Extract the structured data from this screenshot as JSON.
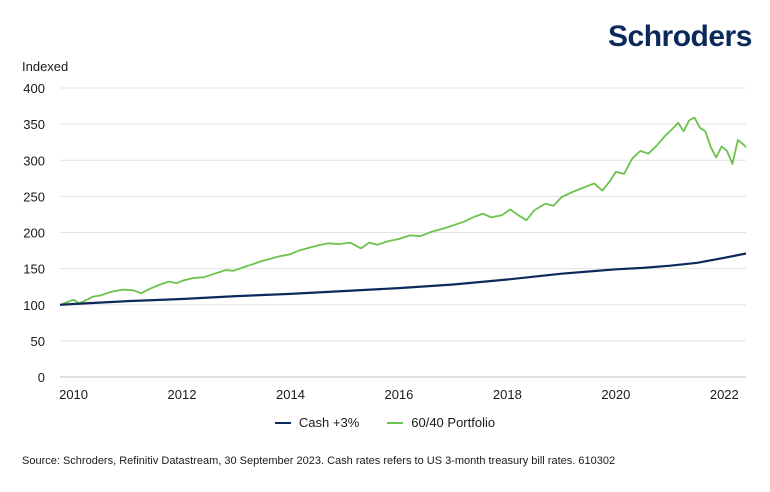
{
  "brand": {
    "name": "Schroders"
  },
  "chart_data": {
    "type": "line",
    "ylabel": "Indexed",
    "xlabel": "",
    "ylim": [
      0,
      400
    ],
    "xlim": [
      2009.75,
      2022.4
    ],
    "yticks": [
      0,
      50,
      100,
      150,
      200,
      250,
      300,
      350,
      400
    ],
    "xticks": [
      2010,
      2012,
      2014,
      2016,
      2018,
      2020,
      2022
    ],
    "grid": true,
    "legend_position": "bottom",
    "series": [
      {
        "name": "Cash +3%",
        "color": "#0b2a5b",
        "points": [
          [
            2009.75,
            100
          ],
          [
            2010.0,
            101
          ],
          [
            2011.0,
            105
          ],
          [
            2012.0,
            108
          ],
          [
            2013.0,
            112
          ],
          [
            2014.0,
            115
          ],
          [
            2015.0,
            119
          ],
          [
            2016.0,
            123
          ],
          [
            2017.0,
            128
          ],
          [
            2018.0,
            135
          ],
          [
            2019.0,
            143
          ],
          [
            2019.5,
            146
          ],
          [
            2020.0,
            149
          ],
          [
            2020.5,
            151
          ],
          [
            2021.0,
            154
          ],
          [
            2021.5,
            158
          ],
          [
            2022.0,
            165
          ],
          [
            2022.4,
            171
          ]
        ]
      },
      {
        "name": "60/40 Portfolio",
        "color": "#6cc24a",
        "points": [
          [
            2009.75,
            100
          ],
          [
            2009.9,
            104
          ],
          [
            2010.0,
            107
          ],
          [
            2010.1,
            102
          ],
          [
            2010.2,
            105
          ],
          [
            2010.35,
            111
          ],
          [
            2010.5,
            113
          ],
          [
            2010.7,
            118
          ],
          [
            2010.9,
            121
          ],
          [
            2011.1,
            120
          ],
          [
            2011.25,
            116
          ],
          [
            2011.4,
            122
          ],
          [
            2011.6,
            128
          ],
          [
            2011.75,
            132
          ],
          [
            2011.9,
            130
          ],
          [
            2012.0,
            133
          ],
          [
            2012.2,
            137
          ],
          [
            2012.4,
            138
          ],
          [
            2012.6,
            143
          ],
          [
            2012.8,
            148
          ],
          [
            2012.95,
            147
          ],
          [
            2013.1,
            151
          ],
          [
            2013.3,
            156
          ],
          [
            2013.45,
            160
          ],
          [
            2013.6,
            163
          ],
          [
            2013.8,
            167
          ],
          [
            2014.0,
            170
          ],
          [
            2014.15,
            175
          ],
          [
            2014.3,
            178
          ],
          [
            2014.5,
            182
          ],
          [
            2014.7,
            185
          ],
          [
            2014.9,
            184
          ],
          [
            2015.1,
            186
          ],
          [
            2015.3,
            178
          ],
          [
            2015.45,
            186
          ],
          [
            2015.6,
            183
          ],
          [
            2015.8,
            188
          ],
          [
            2016.0,
            191
          ],
          [
            2016.2,
            196
          ],
          [
            2016.4,
            195
          ],
          [
            2016.6,
            201
          ],
          [
            2016.8,
            205
          ],
          [
            2017.0,
            210
          ],
          [
            2017.2,
            215
          ],
          [
            2017.4,
            222
          ],
          [
            2017.55,
            226
          ],
          [
            2017.7,
            221
          ],
          [
            2017.9,
            224
          ],
          [
            2018.05,
            232
          ],
          [
            2018.2,
            224
          ],
          [
            2018.35,
            217
          ],
          [
            2018.5,
            231
          ],
          [
            2018.7,
            240
          ],
          [
            2018.85,
            237
          ],
          [
            2019.0,
            249
          ],
          [
            2019.2,
            256
          ],
          [
            2019.4,
            262
          ],
          [
            2019.6,
            268
          ],
          [
            2019.75,
            258
          ],
          [
            2019.9,
            272
          ],
          [
            2020.0,
            284
          ],
          [
            2020.15,
            281
          ],
          [
            2020.3,
            302
          ],
          [
            2020.45,
            313
          ],
          [
            2020.6,
            309
          ],
          [
            2020.75,
            320
          ],
          [
            2020.9,
            333
          ],
          [
            2021.05,
            344
          ],
          [
            2021.15,
            352
          ],
          [
            2021.25,
            340
          ],
          [
            2021.35,
            355
          ],
          [
            2021.45,
            359
          ],
          [
            2021.55,
            345
          ],
          [
            2021.65,
            340
          ],
          [
            2021.75,
            318
          ],
          [
            2021.85,
            304
          ],
          [
            2021.95,
            319
          ],
          [
            2022.05,
            313
          ],
          [
            2022.15,
            295
          ],
          [
            2022.25,
            328
          ],
          [
            2022.35,
            322
          ],
          [
            2022.4,
            318
          ]
        ]
      }
    ]
  },
  "source_note": "Source: Schroders, Refinitiv Datastream, 30 September 2023. Cash rates refers to US 3-month treasury bill rates. 610302"
}
